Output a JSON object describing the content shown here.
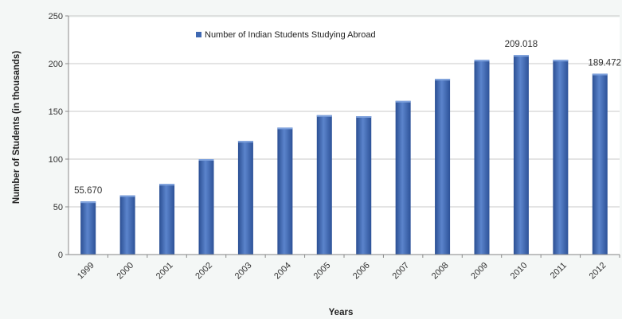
{
  "chart_data": {
    "type": "bar",
    "categories": [
      "1999",
      "2000",
      "2001",
      "2002",
      "2003",
      "2004",
      "2005",
      "2006",
      "2007",
      "2008",
      "2009",
      "2010",
      "2011",
      "2012"
    ],
    "series": [
      {
        "name": "Number of Indian Students  Studying Abroad",
        "values": [
          55.67,
          62,
          74,
          100,
          119,
          133,
          146,
          145,
          161,
          184,
          204,
          209.018,
          204,
          189.472
        ],
        "color": "#3f68b2"
      }
    ],
    "data_labels": [
      {
        "category": "1999",
        "text": "55.670"
      },
      {
        "category": "2010",
        "text": "209.018"
      },
      {
        "category": "2012",
        "text": "189.472"
      }
    ],
    "xlabel": "Years",
    "ylabel": "Number of Students  (in thousands)",
    "ylim": [
      0,
      250
    ],
    "yticks": [
      0,
      50,
      100,
      150,
      200,
      250
    ],
    "grid": true,
    "legend_position": "top"
  }
}
